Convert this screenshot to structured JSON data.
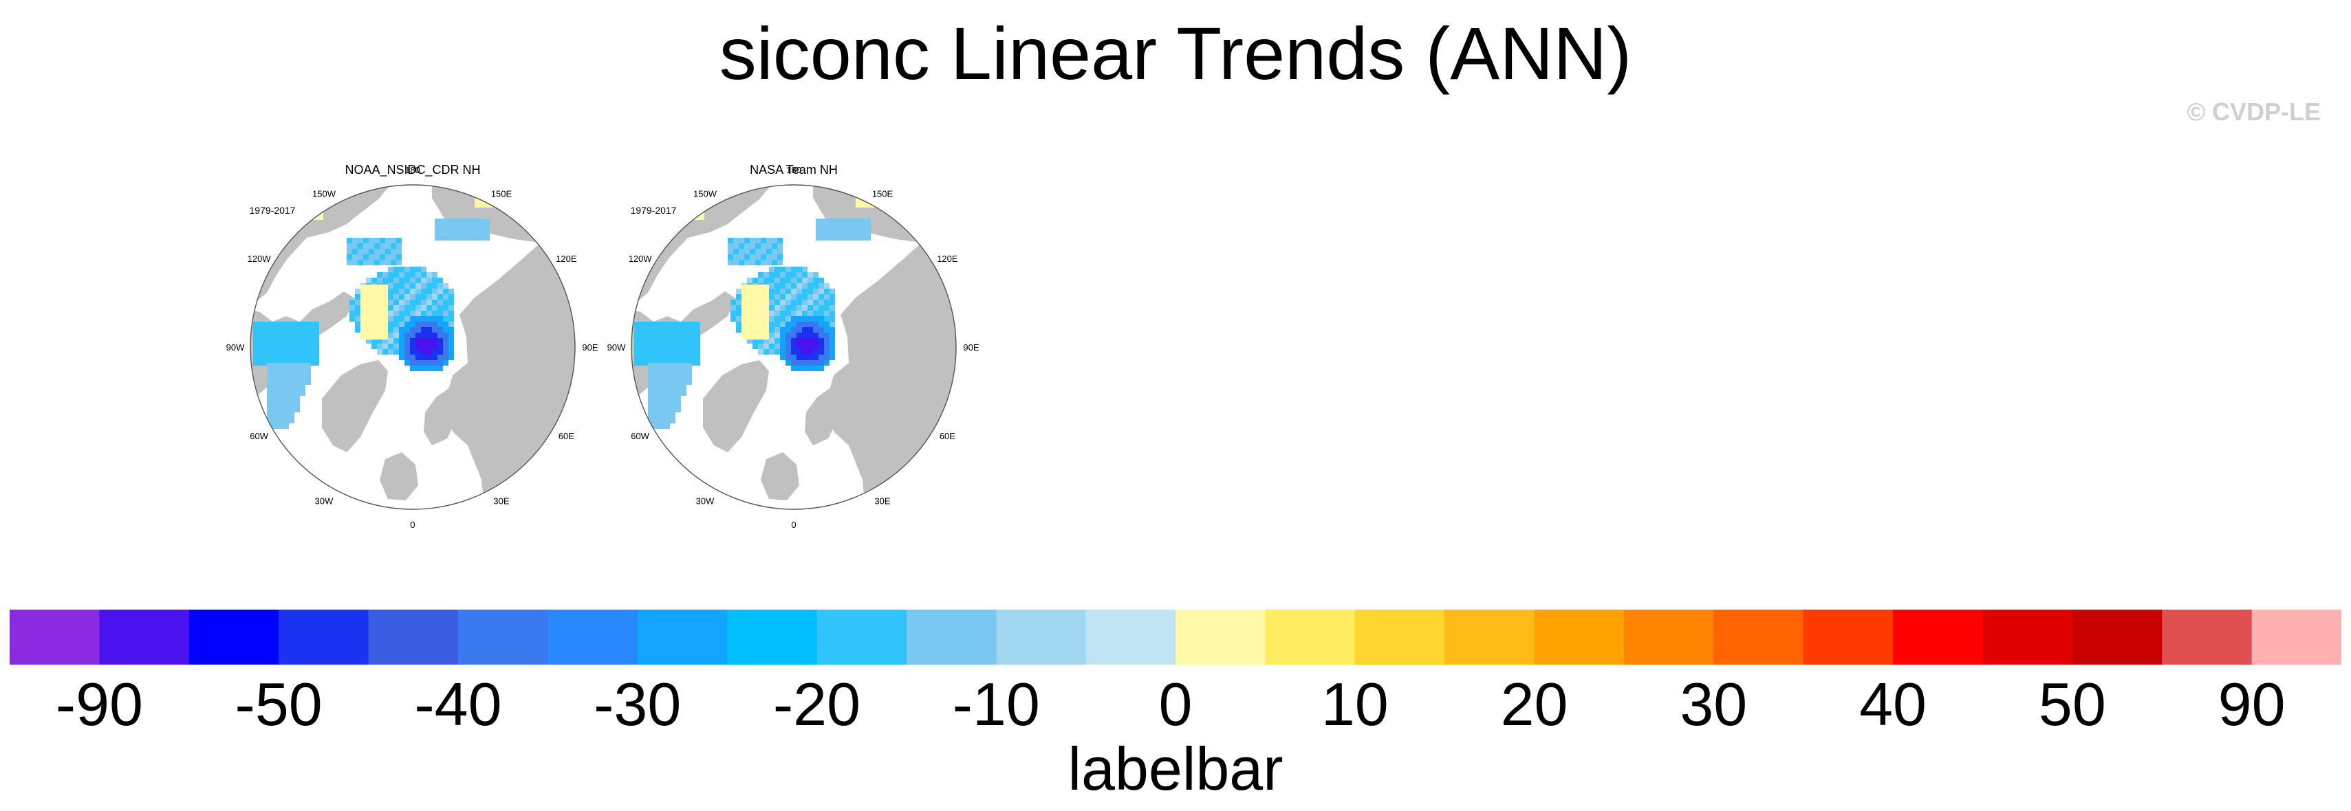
{
  "title": "siconc Linear Trends (ANN)",
  "watermark": "© CVDP-LE",
  "panels": [
    {
      "name": "NOAA_NSIDC_CDR NH",
      "period": "1979-2017",
      "lon_labels": [
        "180",
        "150E",
        "120E",
        "90E",
        "60E",
        "30E",
        "0",
        "30W",
        "60W",
        "90W",
        "120W",
        "150W"
      ]
    },
    {
      "name": "NASA Team NH",
      "period": "1979-2017",
      "lon_labels": [
        "180",
        "150E",
        "120E",
        "90E",
        "60E",
        "30E",
        "0",
        "30W",
        "60W",
        "90W",
        "120W",
        "150W"
      ]
    }
  ],
  "colors": {
    "land": "#c0c0c0",
    "ocean": "#ffffff",
    "outline": "#555555"
  },
  "labelbar": {
    "title": "labelbar",
    "colors": [
      "#8a2be2",
      "#4b12f0",
      "#0000ff",
      "#1a33f0",
      "#3a5ce0",
      "#3a78ee",
      "#2a88ff",
      "#12a4ff",
      "#00bfff",
      "#30c4fa",
      "#78c8f2",
      "#a0d6f0",
      "#c0e4f4",
      "#fff9a8",
      "#ffec60",
      "#ffd530",
      "#ffbb18",
      "#ffa200",
      "#ff8400",
      "#ff6400",
      "#ff3a00",
      "#ff0000",
      "#e00000",
      "#c80000",
      "#e05050",
      "#ffb0b0"
    ],
    "tick_labels": [
      "-90",
      "-50",
      "-40",
      "-30",
      "-20",
      "-10",
      "0",
      "10",
      "20",
      "30",
      "40",
      "50",
      "90"
    ]
  }
}
